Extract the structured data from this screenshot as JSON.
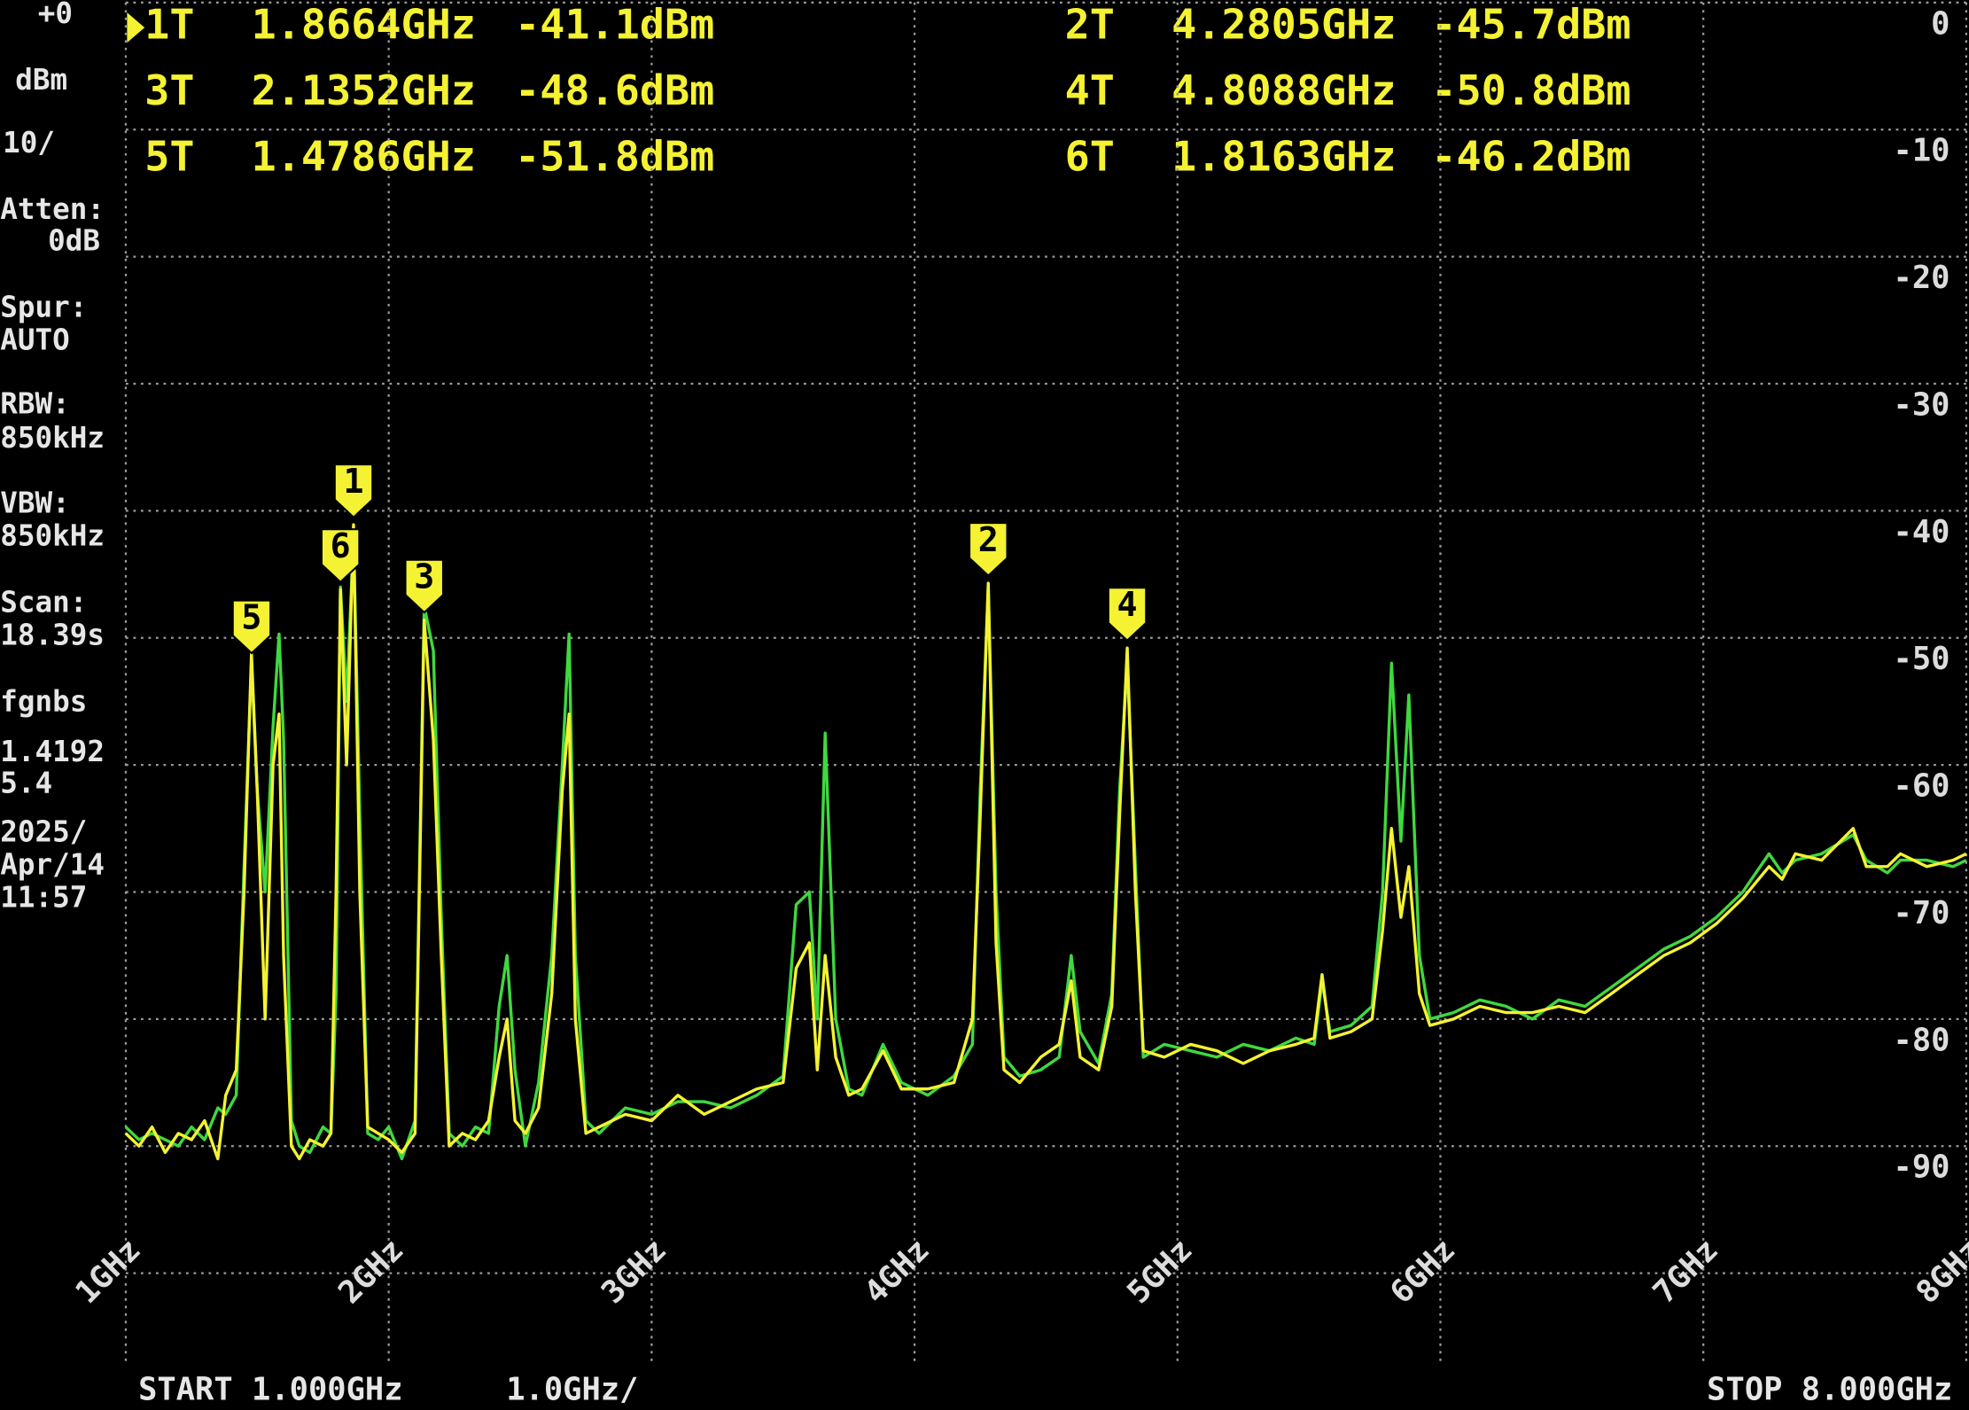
{
  "side_panel": [
    "+0",
    "dBm",
    "10/",
    "Atten:",
    "0dB",
    "Spur:",
    "AUTO",
    "RBW:",
    "850kHz",
    "VBW:",
    "850kHz",
    "Scan:",
    "18.39s",
    "fgnbs",
    "1.4192",
    "5.4",
    "2025/",
    "Apr/14",
    "11:57"
  ],
  "readouts": [
    {
      "label": "1T",
      "freq": "1.8664GHz",
      "level": "-41.1dBm"
    },
    {
      "label": "2T",
      "freq": "4.2805GHz",
      "level": "-45.7dBm"
    },
    {
      "label": "3T",
      "freq": "2.1352GHz",
      "level": "-48.6dBm"
    },
    {
      "label": "4T",
      "freq": "4.8088GHz",
      "level": "-50.8dBm"
    },
    {
      "label": "5T",
      "freq": "1.4786GHz",
      "level": "-51.8dBm"
    },
    {
      "label": "6T",
      "freq": "1.8163GHz",
      "level": "-46.2dBm"
    }
  ],
  "footer": {
    "start": "START 1.000GHz",
    "span": "1.0GHz/",
    "stop": "STOP 8.000GHz"
  },
  "chart_data": {
    "type": "line",
    "xlim": [
      1,
      8
    ],
    "ylim": [
      -100,
      0
    ],
    "xticks": [
      {
        "value": 1,
        "label": "1GHz"
      },
      {
        "value": 2,
        "label": "2GHz"
      },
      {
        "value": 3,
        "label": "3GHz"
      },
      {
        "value": 4,
        "label": "4GHz"
      },
      {
        "value": 5,
        "label": "5GHz"
      },
      {
        "value": 6,
        "label": "6GHz"
      },
      {
        "value": 7,
        "label": "7GHz"
      },
      {
        "value": 8,
        "label": "8GHz"
      }
    ],
    "yticks": [
      0,
      -10,
      -20,
      -30,
      -40,
      -50,
      -60,
      -70,
      -80,
      -90
    ],
    "grid": true,
    "x": [
      1.0,
      1.05,
      1.1,
      1.15,
      1.2,
      1.25,
      1.3,
      1.35,
      1.38,
      1.42,
      1.45,
      1.478,
      1.5,
      1.53,
      1.56,
      1.583,
      1.6,
      1.63,
      1.66,
      1.7,
      1.75,
      1.78,
      1.8,
      1.8163,
      1.84,
      1.8664,
      1.89,
      1.92,
      1.96,
      2.0,
      2.05,
      2.1,
      2.1352,
      2.17,
      2.2,
      2.23,
      2.28,
      2.33,
      2.38,
      2.42,
      2.45,
      2.48,
      2.52,
      2.57,
      2.62,
      2.66,
      2.686,
      2.71,
      2.75,
      2.8,
      2.9,
      3.0,
      3.1,
      3.2,
      3.3,
      3.4,
      3.5,
      3.55,
      3.6,
      3.63,
      3.66,
      3.7,
      3.75,
      3.8,
      3.88,
      3.95,
      4.05,
      4.15,
      4.22,
      4.25,
      4.2805,
      4.31,
      4.34,
      4.4,
      4.48,
      4.55,
      4.596,
      4.63,
      4.7,
      4.75,
      4.78,
      4.8088,
      4.84,
      4.87,
      4.95,
      5.05,
      5.15,
      5.25,
      5.35,
      5.45,
      5.52,
      5.55,
      5.58,
      5.66,
      5.74,
      5.78,
      5.814,
      5.85,
      5.88,
      5.92,
      5.96,
      6.05,
      6.15,
      6.25,
      6.35,
      6.45,
      6.55,
      6.65,
      6.75,
      6.85,
      6.95,
      7.05,
      7.15,
      7.25,
      7.3,
      7.35,
      7.45,
      7.57,
      7.62,
      7.7,
      7.75,
      7.85,
      7.95,
      8.0
    ],
    "series": [
      {
        "color": "#3fd83f",
        "values": [
          -88.5,
          -89.5,
          -89,
          -89.5,
          -90,
          -88.5,
          -89.5,
          -87,
          -87.5,
          -86,
          -68,
          -52,
          -62,
          -70,
          -57,
          -49.7,
          -58,
          -88,
          -90,
          -90.5,
          -88.5,
          -89,
          -78,
          -46,
          -55,
          -42,
          -64,
          -89,
          -89.5,
          -88.5,
          -91,
          -88,
          -47.5,
          -51,
          -72,
          -89,
          -90,
          -88.5,
          -89,
          -79,
          -75,
          -84,
          -90,
          -85,
          -75,
          -60,
          -49.7,
          -75,
          -88,
          -89,
          -87,
          -87.5,
          -86.5,
          -86.5,
          -87,
          -86,
          -84.5,
          -71,
          -70,
          -80,
          -57.5,
          -80,
          -85.5,
          -86,
          -82,
          -85,
          -86,
          -84.5,
          -82,
          -62,
          -46,
          -70,
          -83,
          -84.5,
          -84,
          -83,
          -75,
          -81,
          -83.5,
          -78,
          -62,
          -52,
          -68,
          -83,
          -82,
          -82.5,
          -83,
          -82,
          -82.5,
          -81.5,
          -82,
          -77,
          -81,
          -80.5,
          -79,
          -70,
          -52,
          -66,
          -54.5,
          -75,
          -80,
          -79.5,
          -78.5,
          -79,
          -80,
          -78.5,
          -79,
          -77.5,
          -76,
          -74.5,
          -73.5,
          -72,
          -70,
          -67,
          -68.5,
          -67.5,
          -67,
          -65.5,
          -67.5,
          -68.5,
          -67.5,
          -67.5,
          -68,
          -67.5
        ]
      },
      {
        "color": "#f4f232",
        "values": [
          -89,
          -90,
          -88.5,
          -90.5,
          -89,
          -89.5,
          -88,
          -91,
          -86,
          -84,
          -70,
          -51.2,
          -62,
          -80,
          -60,
          -56,
          -75,
          -90,
          -91,
          -89.5,
          -90,
          -89,
          -70,
          -46.2,
          -60,
          -41.1,
          -70,
          -88.5,
          -89,
          -89.5,
          -90.5,
          -89,
          -48.6,
          -58,
          -75,
          -90,
          -89,
          -89.5,
          -88,
          -83,
          -80,
          -88,
          -89,
          -87,
          -78,
          -62,
          -56,
          -80,
          -89,
          -88.5,
          -87.5,
          -88,
          -86,
          -87.5,
          -86.5,
          -85.5,
          -85,
          -76,
          -74,
          -84,
          -75,
          -83,
          -86,
          -85.5,
          -82.5,
          -85.5,
          -85.5,
          -85,
          -80,
          -64,
          -45.7,
          -74,
          -84,
          -85,
          -83,
          -82,
          -77,
          -83,
          -84,
          -79,
          -64,
          -50.8,
          -70,
          -82.5,
          -83,
          -82,
          -82.5,
          -83.5,
          -82.5,
          -82,
          -81.5,
          -76.5,
          -81.5,
          -81,
          -80,
          -73,
          -65,
          -72,
          -68,
          -78,
          -80.5,
          -80,
          -79,
          -79.5,
          -79.5,
          -79,
          -79.5,
          -78,
          -76.5,
          -75,
          -74,
          -72.5,
          -70.5,
          -68,
          -69,
          -67,
          -67.5,
          -65,
          -68,
          -68,
          -67,
          -68,
          -67.5,
          -67
        ]
      }
    ],
    "markers": [
      {
        "label": "1",
        "x": 1.8664,
        "y": -41.1
      },
      {
        "label": "2",
        "x": 4.2805,
        "y": -45.7
      },
      {
        "label": "3",
        "x": 2.1352,
        "y": -48.6
      },
      {
        "label": "4",
        "x": 4.8088,
        "y": -50.8
      },
      {
        "label": "5",
        "x": 1.4786,
        "y": -51.8
      },
      {
        "label": "6",
        "x": 1.8163,
        "y": -46.2
      }
    ]
  }
}
